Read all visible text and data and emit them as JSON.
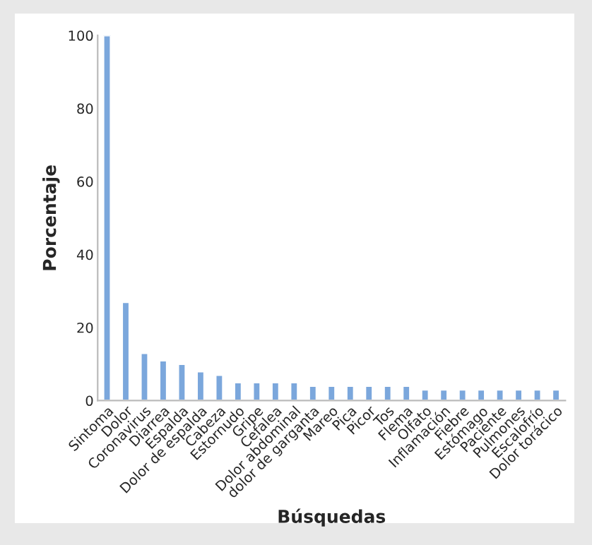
{
  "chart_data": {
    "type": "bar",
    "xlabel": "Búsquedas",
    "ylabel": "Porcentaje",
    "categories": [
      "Sintoma",
      "Dolor",
      "Coronavirus",
      "Diarrea",
      "Espalda",
      "Dolor de espalda",
      "Cabeza",
      "Estornudo",
      "Gripe",
      "Cefalea",
      "Dolor abdominal",
      "dolor de garganta",
      "Mareo",
      "Pica",
      "Picor",
      "Tos",
      "Flema",
      "Olfato",
      "Inflamación",
      "Fiebre",
      "Estómago",
      "Paciente",
      "Pulmones",
      "Escalofrío",
      "Dolor torácico"
    ],
    "values": [
      100,
      27,
      13,
      11,
      10,
      8,
      7,
      5,
      5,
      5,
      5,
      4,
      4,
      4,
      4,
      4,
      4,
      3,
      3,
      3,
      3,
      3,
      3,
      3,
      3
    ],
    "color": "#7ba7dc",
    "ylim": [
      0,
      100
    ],
    "yticks": [
      0,
      20,
      40,
      60,
      80,
      100
    ],
    "grid": false,
    "legend": false
  }
}
